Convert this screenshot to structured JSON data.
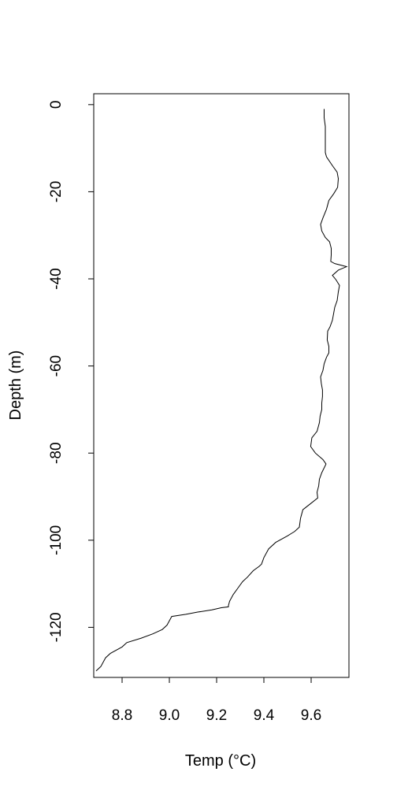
{
  "chart_data": {
    "type": "line",
    "title": "",
    "xlabel": "Temp (°C)",
    "ylabel": "Depth (m)",
    "xlim": [
      8.68,
      9.76
    ],
    "ylim": [
      -131.5,
      2.5
    ],
    "x_ticks": [
      8.8,
      9.0,
      9.2,
      9.4,
      9.6
    ],
    "x_tick_labels": [
      "8.8",
      "9.0",
      "9.2",
      "9.4",
      "9.6"
    ],
    "y_ticks": [
      0,
      -20,
      -40,
      -60,
      -80,
      -100,
      -120
    ],
    "y_tick_labels": [
      "0",
      "-20",
      "-40",
      "-60",
      "-80",
      "-100",
      "-120"
    ],
    "grid": false,
    "legend": "none",
    "line_color": "#000000",
    "series": [
      {
        "x": [
          9.655,
          9.655,
          9.66,
          9.66,
          9.66,
          9.66,
          9.665,
          9.69,
          9.71,
          9.715,
          9.712,
          9.695,
          9.675,
          9.665,
          9.65,
          9.64,
          9.645,
          9.66,
          9.678,
          9.685,
          9.685,
          9.683,
          9.7,
          9.75,
          9.715,
          9.69,
          9.705,
          9.72,
          9.715,
          9.71,
          9.7,
          9.695,
          9.69,
          9.68,
          9.67,
          9.668,
          9.675,
          9.675,
          9.665,
          9.655,
          9.65,
          9.64,
          9.643,
          9.648,
          9.648,
          9.645,
          9.645,
          9.638,
          9.635,
          9.625,
          9.603,
          9.598,
          9.618,
          9.65,
          9.663,
          9.645,
          9.635,
          9.632,
          9.625,
          9.628,
          9.6,
          9.565,
          9.555,
          9.55,
          9.53,
          9.515,
          9.5,
          9.45,
          9.42,
          9.4,
          9.39,
          9.38,
          9.355,
          9.33,
          9.31,
          9.29,
          9.27,
          9.255,
          9.25,
          9.25,
          9.22,
          9.18,
          9.12,
          9.07,
          9.01,
          9.0,
          8.99,
          8.97,
          8.93,
          8.88,
          8.82,
          8.8,
          8.75,
          8.73,
          8.71,
          8.69
        ],
        "y": [
          -1,
          -3,
          -5,
          -7,
          -9,
          -11,
          -12,
          -14,
          -15.5,
          -17,
          -19,
          -20.5,
          -22,
          -24,
          -26,
          -27.5,
          -29,
          -30.5,
          -31.5,
          -33,
          -34.5,
          -36,
          -36.5,
          -37.2,
          -38,
          -39.2,
          -40.2,
          -41.5,
          -43,
          -45,
          -46.5,
          -48,
          -49.5,
          -51,
          -52,
          -54,
          -55.5,
          -57,
          -58,
          -59.5,
          -61,
          -62.5,
          -64,
          -65.5,
          -67,
          -68.5,
          -70,
          -71.5,
          -73,
          -75,
          -76.5,
          -78.5,
          -80,
          -81.5,
          -82.5,
          -84.5,
          -86,
          -87.5,
          -89,
          -90.3,
          -91.5,
          -93,
          -95,
          -97,
          -98,
          -98.5,
          -99,
          -100.5,
          -102,
          -104,
          -105.5,
          -106,
          -107,
          -108.5,
          -109.5,
          -111,
          -112.5,
          -114,
          -115,
          -115.3,
          -115.5,
          -116,
          -116.5,
          -117,
          -117.5,
          -118.5,
          -119.5,
          -120.5,
          -121.5,
          -122.5,
          -123.5,
          -124.5,
          -126,
          -127,
          -129,
          -130
        ]
      }
    ]
  }
}
